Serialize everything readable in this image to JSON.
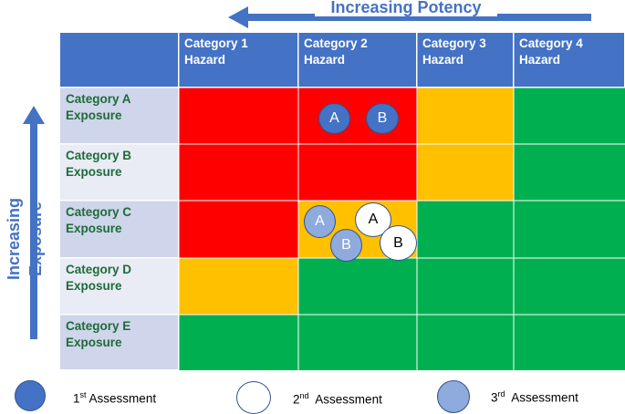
{
  "potency_label": "Increasing Potency",
  "exposure_label": "Increasing Exposure",
  "columns": [
    {
      "line1": "Category 1",
      "line2": "Hazard"
    },
    {
      "line1": "Category 2",
      "line2": "Hazard"
    },
    {
      "line1": "Category 3",
      "line2": "Hazard"
    },
    {
      "line1": "Category 4",
      "line2": "Hazard"
    }
  ],
  "rows": [
    {
      "line1": "Category A",
      "line2": "Exposure"
    },
    {
      "line1": "Category B",
      "line2": "Exposure"
    },
    {
      "line1": "Category C",
      "line2": "Exposure"
    },
    {
      "line1": "Category D",
      "line2": "Exposure"
    },
    {
      "line1": "Category E",
      "line2": "Exposure"
    }
  ],
  "colors": {
    "red": "#ff0000",
    "amber": "#ffc000",
    "green": "#00b050",
    "header_blue": "#4472c4",
    "row_header_dark": "#cfd5ea",
    "row_header_light": "#e9ebf5"
  },
  "matrix": [
    [
      "red",
      "red",
      "amber",
      "green"
    ],
    [
      "red",
      "red",
      "amber",
      "green"
    ],
    [
      "red",
      "amber",
      "green",
      "green"
    ],
    [
      "amber",
      "green",
      "green",
      "green"
    ],
    [
      "green",
      "green",
      "green",
      "green"
    ]
  ],
  "assessments": [
    {
      "label": "A",
      "assessment": 1,
      "row": "Category A",
      "column": "Category 2"
    },
    {
      "label": "B",
      "assessment": 1,
      "row": "Category A",
      "column": "Category 2"
    },
    {
      "label": "A",
      "assessment": 2,
      "row": "Category C",
      "column": "Category 2"
    },
    {
      "label": "B",
      "assessment": 2,
      "row": "Category C",
      "column": "Category 2"
    },
    {
      "label": "A",
      "assessment": 3,
      "row": "Category C",
      "column": "Category 2"
    },
    {
      "label": "B",
      "assessment": 3,
      "row": "Category C",
      "column": "Category 2"
    }
  ],
  "legend": [
    {
      "ordinal": "1",
      "suffix": "st",
      "text": "Assessment",
      "style": "filled-blue"
    },
    {
      "ordinal": "2",
      "suffix": "nd",
      "text": "Assessment",
      "style": "white"
    },
    {
      "ordinal": "3",
      "suffix": "rd",
      "text": "Assessment",
      "style": "light-blue"
    }
  ]
}
